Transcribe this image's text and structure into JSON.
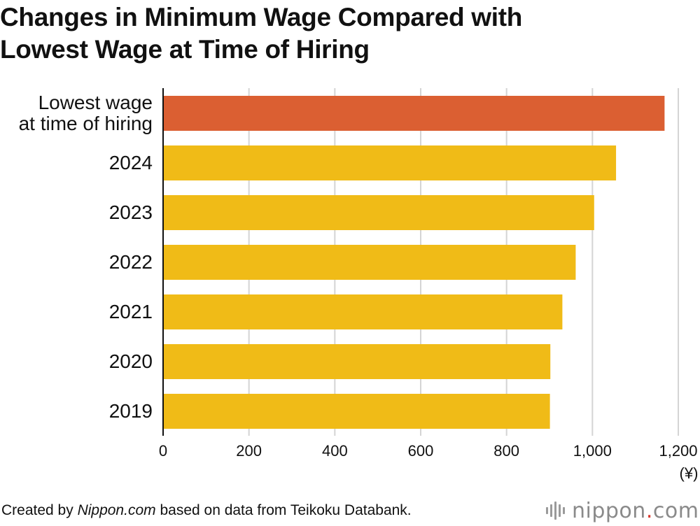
{
  "title_line1": "Changes in Minimum Wage Compared with",
  "title_line2": "Lowest Wage at Time of Hiring",
  "footer": {
    "prefix": "Created by ",
    "source_name": "Nippon.com",
    "suffix": " based on data from Teikoku Databank."
  },
  "brand": {
    "name": "nippon",
    "dot": ".",
    "tld": "com"
  },
  "colors": {
    "highlight": "#db5f32",
    "bar": "#f0bb17",
    "grid": "#d4d4d4",
    "axis": "#111111"
  },
  "chart_data": {
    "type": "bar",
    "orientation": "horizontal",
    "categories": [
      [
        "Lowest wage",
        "at time of hiring"
      ],
      [
        "2024"
      ],
      [
        "2023"
      ],
      [
        "2022"
      ],
      [
        "2021"
      ],
      [
        "2020"
      ],
      [
        "2019"
      ]
    ],
    "values": [
      1168,
      1055,
      1004,
      961,
      930,
      902,
      901
    ],
    "highlight_index": 0,
    "xlim": [
      0,
      1200
    ],
    "xticks": [
      0,
      200,
      400,
      600,
      800,
      1000,
      1200
    ],
    "xtick_labels": [
      "0",
      "200",
      "400",
      "600",
      "800",
      "1,000",
      "1,200"
    ],
    "unit_label": "(¥)",
    "grid": true
  }
}
